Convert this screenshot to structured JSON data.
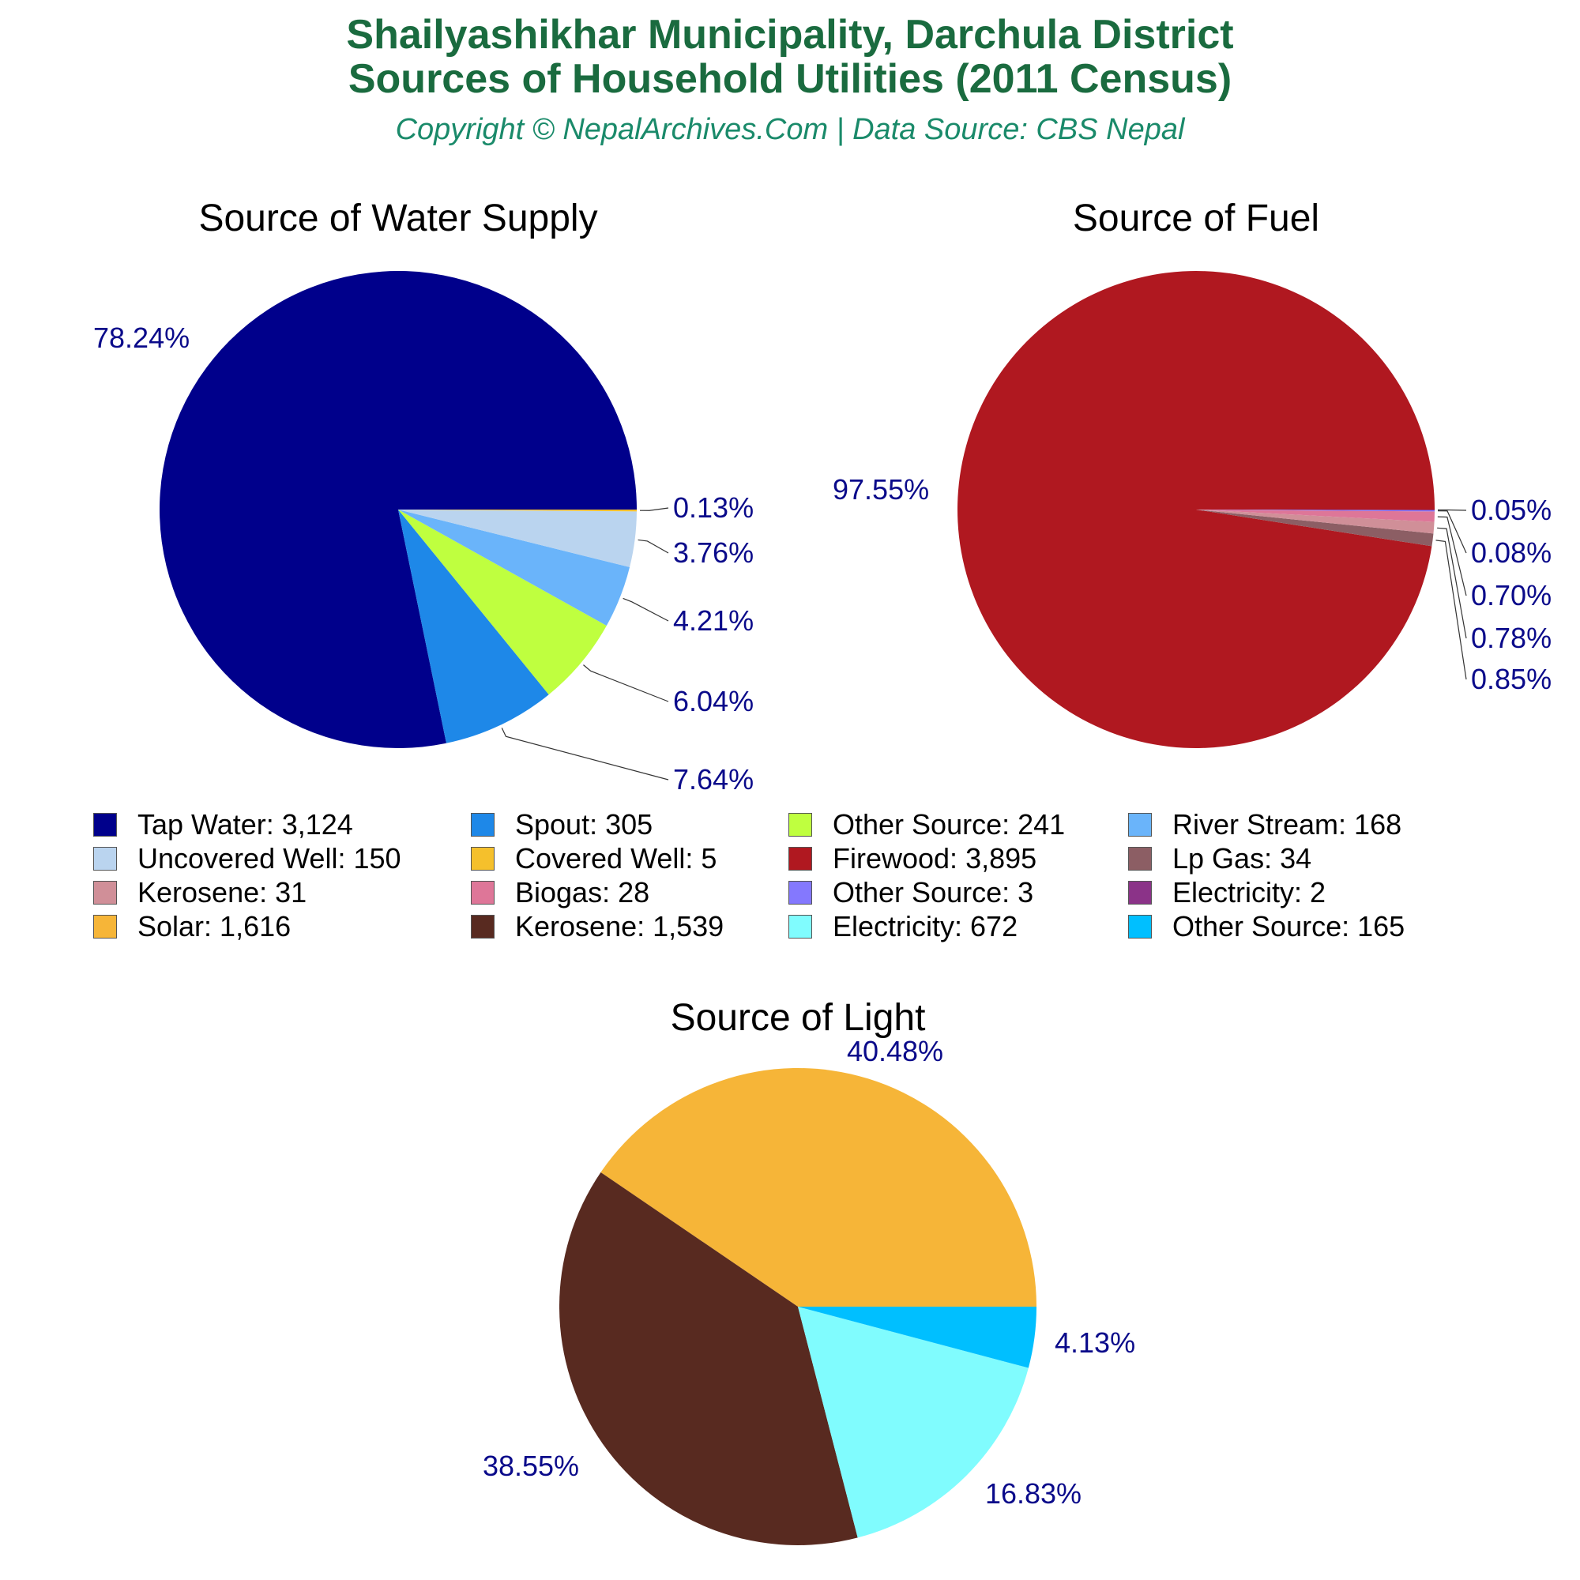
{
  "header": {
    "title_line1": "Shailyashikhar Municipality, Darchula District",
    "title_line2": "Sources of Household Utilities (2011 Census)",
    "subtitle": "Copyright © NepalArchives.Com | Data Source: CBS Nepal"
  },
  "colors": {
    "title": "#1a6b3f",
    "subtitle": "#1a8a6a",
    "labels": "#0a0a8a"
  },
  "chart_data": [
    {
      "type": "pie",
      "title": "Source of Water Supply",
      "categories": [
        "Tap Water",
        "Spout",
        "Other Source",
        "River Stream",
        "Uncovered Well",
        "Covered Well"
      ],
      "values": [
        3124,
        305,
        241,
        168,
        150,
        5
      ],
      "colors": [
        "#00008b",
        "#1e88e8",
        "#bfff3f",
        "#6ab4fa",
        "#bad4ef",
        "#f5c02c"
      ],
      "labels": [
        "78.24%",
        "7.64%",
        "6.04%",
        "4.21%",
        "3.76%",
        "0.13%"
      ]
    },
    {
      "type": "pie",
      "title": "Source of Fuel",
      "categories": [
        "Firewood",
        "Lp Gas",
        "Kerosene",
        "Biogas",
        "Other Source",
        "Electricity"
      ],
      "values": [
        3895,
        34,
        31,
        28,
        3,
        2
      ],
      "colors": [
        "#b01820",
        "#8c5e64",
        "#d08f98",
        "#de7698",
        "#8478fe",
        "#8b3388"
      ],
      "labels": [
        "97.55%",
        "0.85%",
        "0.78%",
        "0.70%",
        "0.08%",
        "0.05%"
      ]
    },
    {
      "type": "pie",
      "title": "Source of Light",
      "categories": [
        "Solar",
        "Kerosene",
        "Electricity",
        "Other Source"
      ],
      "values": [
        1616,
        1539,
        672,
        165
      ],
      "colors": [
        "#f6b538",
        "#582a20",
        "#80fcfe",
        "#00bfff"
      ],
      "labels": [
        "40.48%",
        "38.55%",
        "16.83%",
        "4.13%"
      ]
    }
  ],
  "legend": {
    "rows": [
      [
        {
          "label": "Tap Water: 3,124",
          "color": "#00008b"
        },
        {
          "label": "Spout: 305",
          "color": "#1e88e8"
        },
        {
          "label": "Other Source: 241",
          "color": "#bfff3f"
        },
        {
          "label": "River Stream: 168",
          "color": "#6ab4fa"
        }
      ],
      [
        {
          "label": "Uncovered Well: 150",
          "color": "#bad4ef"
        },
        {
          "label": "Covered Well: 5",
          "color": "#f5c02c"
        },
        {
          "label": "Firewood: 3,895",
          "color": "#b01820"
        },
        {
          "label": "Lp Gas: 34",
          "color": "#8c5e64"
        }
      ],
      [
        {
          "label": "Kerosene: 31",
          "color": "#d08f98"
        },
        {
          "label": "Biogas: 28",
          "color": "#de7698"
        },
        {
          "label": "Other Source: 3",
          "color": "#8478fe"
        },
        {
          "label": "Electricity: 2",
          "color": "#8b3388"
        }
      ],
      [
        {
          "label": "Solar: 1,616",
          "color": "#f6b538"
        },
        {
          "label": "Kerosene: 1,539",
          "color": "#582a20"
        },
        {
          "label": "Electricity: 672",
          "color": "#80fcfe"
        },
        {
          "label": "Other Source: 165",
          "color": "#00bfff"
        }
      ]
    ]
  }
}
